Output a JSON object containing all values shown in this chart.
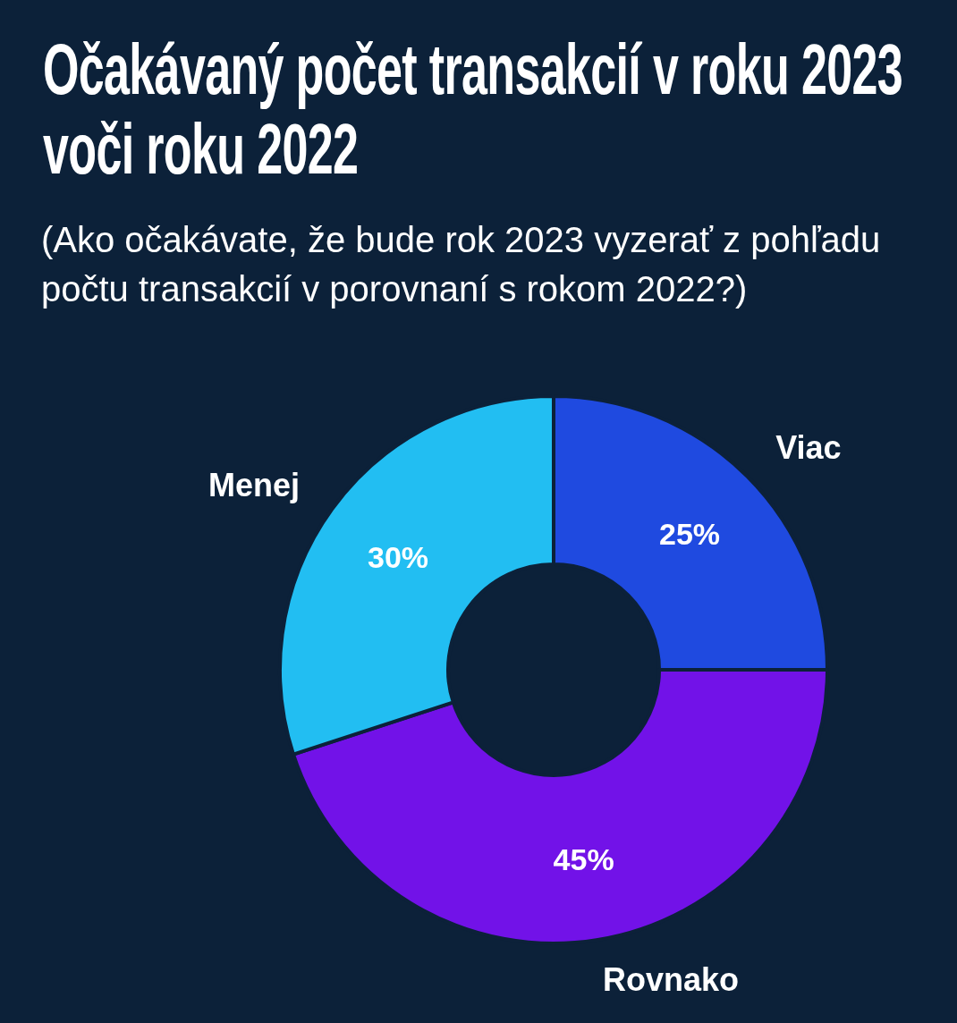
{
  "chart_data": {
    "type": "donut",
    "title": "Očakávaný počet transakcií v roku 2023 voči roku 2022",
    "subtitle": "(Ako očakávate, že bude rok 2023 vyzerať z pohľadu počtu transakcií v porovnaní s rokom 2022?)",
    "categories": [
      "Viac",
      "Rovnako",
      "Menej"
    ],
    "values": [
      25,
      45,
      30
    ],
    "colors": [
      "#1f4ae0",
      "#7212e8",
      "#22bef2"
    ],
    "value_labels": [
      "25%",
      "45%",
      "30%"
    ]
  }
}
